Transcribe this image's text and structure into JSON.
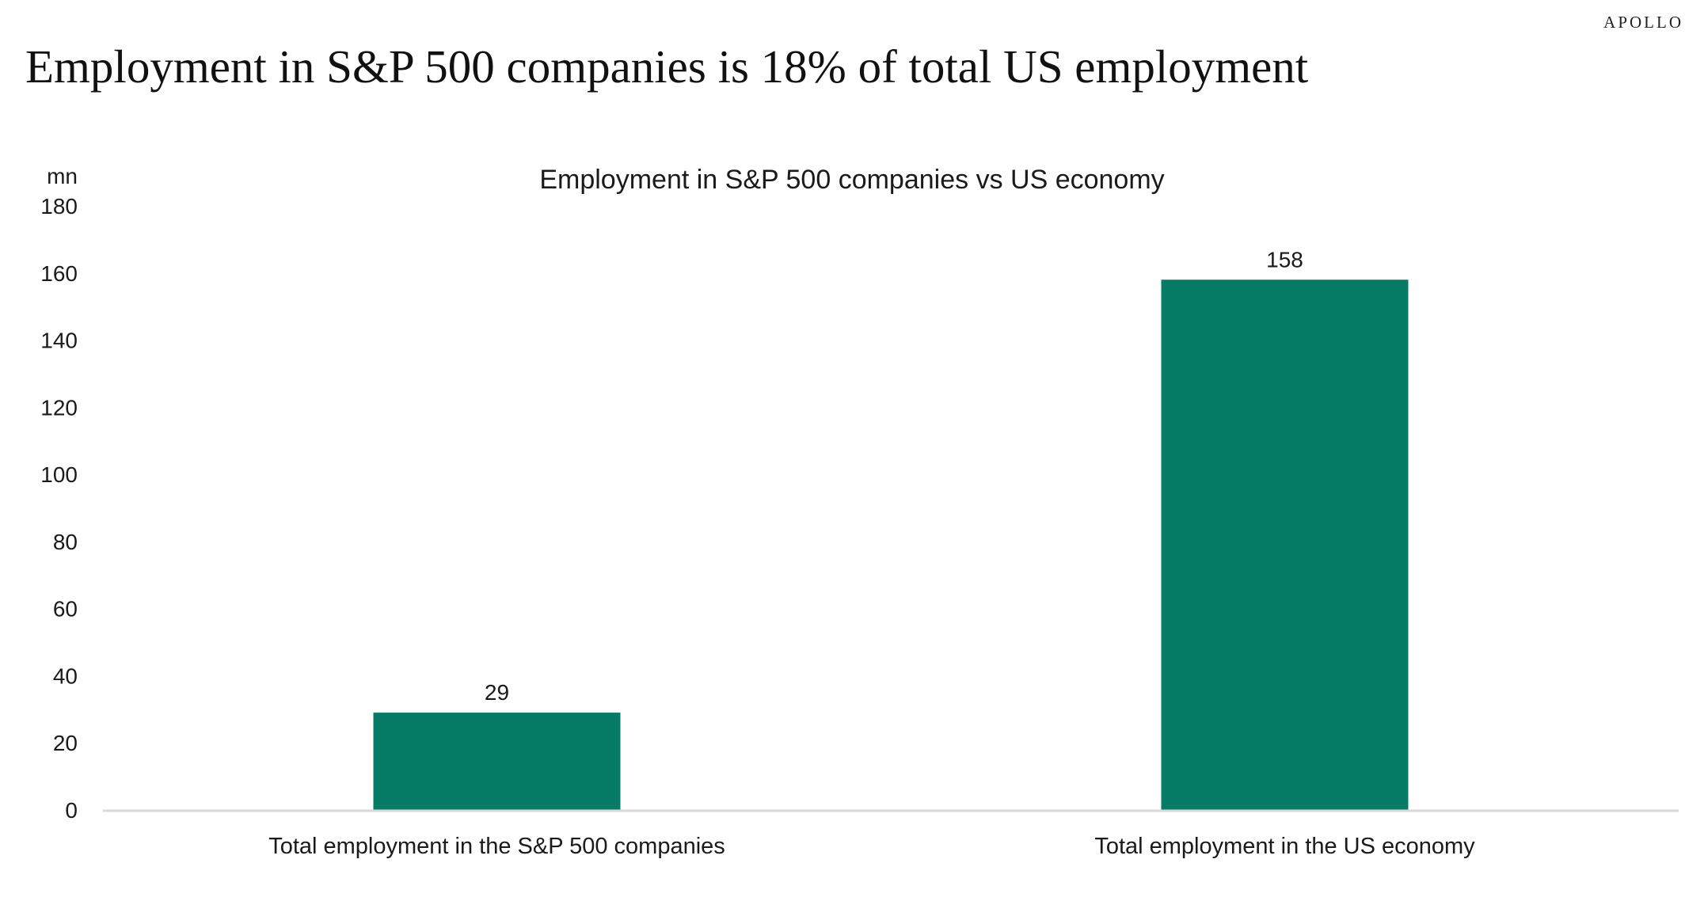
{
  "brand": "APOLLO",
  "page_title": "Employment in S&P 500 companies is 18% of total US employment",
  "chart_data": {
    "type": "bar",
    "title": "Employment in S&P 500 companies vs US economy",
    "y_unit_label": "mn",
    "xlabel": "",
    "ylabel": "",
    "categories": [
      "Total employment in the S&P 500 companies",
      "Total employment in the US economy"
    ],
    "values": [
      29,
      158
    ],
    "data_labels": [
      "29",
      "158"
    ],
    "ylim": [
      0,
      180
    ],
    "y_ticks": [
      0,
      20,
      40,
      60,
      80,
      100,
      120,
      140,
      160,
      180
    ],
    "bar_color": "#067c66",
    "axis_color": "#d9d9d9",
    "grid": false,
    "legend": "none"
  }
}
